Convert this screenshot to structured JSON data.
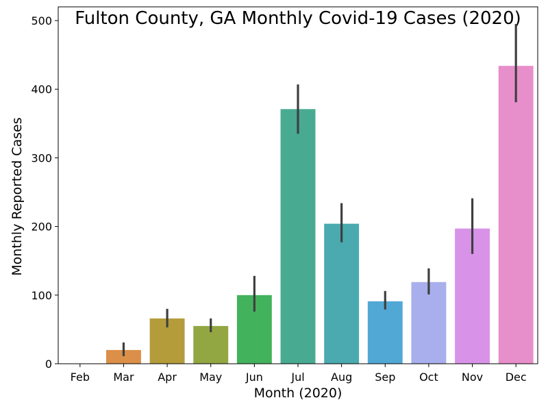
{
  "chart_data": {
    "type": "bar",
    "title": "Fulton County, GA Monthly Covid-19 Cases (2020)",
    "xlabel": "Month (2020)",
    "ylabel": "Monthly Reported Cases",
    "ylim": [
      0,
      520
    ],
    "yticks": [
      0,
      100,
      200,
      300,
      400,
      500
    ],
    "grid": false,
    "categories": [
      "Feb",
      "Mar",
      "Apr",
      "May",
      "Jun",
      "Jul",
      "Aug",
      "Sep",
      "Oct",
      "Nov",
      "Dec"
    ],
    "values": [
      0,
      20,
      66,
      55,
      100,
      371,
      204,
      91,
      119,
      197,
      434
    ],
    "error_low": [
      0,
      11,
      53,
      46,
      76,
      335,
      177,
      79,
      101,
      160,
      381
    ],
    "error_high": [
      0,
      31,
      80,
      66,
      128,
      407,
      234,
      106,
      139,
      241,
      495
    ],
    "colors": [
      "#e1837a",
      "#db8f48",
      "#b59c3b",
      "#92a742",
      "#43b25c",
      "#48ab91",
      "#4aaab0",
      "#52a8d5",
      "#a8afec",
      "#d893e8",
      "#e78fca"
    ],
    "error_color": "#3f3f3f"
  }
}
